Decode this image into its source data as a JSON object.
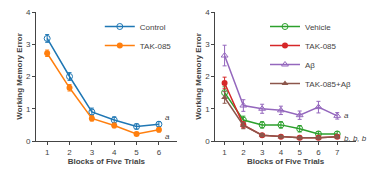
{
  "chart_data": [
    {
      "type": "line",
      "x": [
        1,
        2,
        3,
        4,
        5,
        6
      ],
      "series": [
        {
          "name": "Control",
          "values": [
            3.18,
            2.0,
            0.9,
            0.65,
            0.45,
            0.52
          ],
          "error": [
            0.12,
            0.12,
            0.12,
            0.1,
            0.08,
            0.08
          ],
          "marker": "circle-open"
        },
        {
          "name": "TAK-085",
          "values": [
            2.72,
            1.65,
            0.7,
            0.48,
            0.22,
            0.35
          ],
          "error": [
            0.1,
            0.1,
            0.08,
            0.07,
            0.05,
            0.07
          ],
          "marker": "circle"
        }
      ],
      "xlabel": "Blocks of Five Trials",
      "ylabel": "Working Memory Error",
      "xlim": [
        0.5,
        6.8
      ],
      "ylim": [
        0,
        4.0
      ],
      "xticks": [
        1,
        2,
        3,
        4,
        5,
        6
      ],
      "yticks": [
        0,
        1,
        2,
        3,
        4
      ],
      "grid": false,
      "legend": "upper right",
      "annotations": [
        {
          "text": "a",
          "x": 6.05,
          "y": 0.52
        },
        {
          "text": "a",
          "x": 6.05,
          "y": 0.35
        }
      ]
    },
    {
      "type": "line",
      "x": [
        1,
        2,
        3,
        4,
        5,
        6,
        7
      ],
      "series": [
        {
          "name": "Vehicle",
          "values": [
            1.5,
            0.65,
            0.5,
            0.5,
            0.38,
            0.22,
            0.22
          ],
          "error": [
            0.18,
            0.12,
            0.1,
            0.1,
            0.1,
            0.07,
            0.07
          ],
          "marker": "circle-open"
        },
        {
          "name": "TAK-085",
          "values": [
            1.8,
            0.5,
            0.18,
            0.13,
            0.1,
            0.1,
            0.13
          ],
          "error": [
            0.18,
            0.1,
            0.05,
            0.04,
            0.04,
            0.04,
            0.05
          ],
          "marker": "circle"
        },
        {
          "name": "Aβ",
          "values": [
            2.65,
            1.1,
            1.0,
            0.95,
            0.8,
            1.05,
            0.78
          ],
          "error": [
            0.32,
            0.18,
            0.14,
            0.13,
            0.13,
            0.18,
            0.1
          ],
          "marker": "triangle-up-open"
        },
        {
          "name": "TAK-085+Aβ",
          "values": [
            1.35,
            0.48,
            0.18,
            0.13,
            0.1,
            0.1,
            0.13
          ],
          "error": [
            0.18,
            0.1,
            0.05,
            0.04,
            0.04,
            0.04,
            0.05
          ],
          "marker": "triangle-up"
        }
      ],
      "xlabel": "Blocks of Five Trials",
      "ylabel": "Working Memory Error",
      "xlim": [
        0.5,
        8.0
      ],
      "ylim": [
        0,
        4.0
      ],
      "xticks": [
        1,
        2,
        3,
        4,
        5,
        6,
        7
      ],
      "yticks": [
        0,
        1,
        2,
        3,
        4
      ],
      "grid": false,
      "legend": "upper right",
      "annotations": [
        {
          "text": "a",
          "x": 7.08,
          "y": 0.78
        },
        {
          "text": "b, b, b",
          "x": 7.08,
          "y": 0.08
        }
      ]
    }
  ]
}
